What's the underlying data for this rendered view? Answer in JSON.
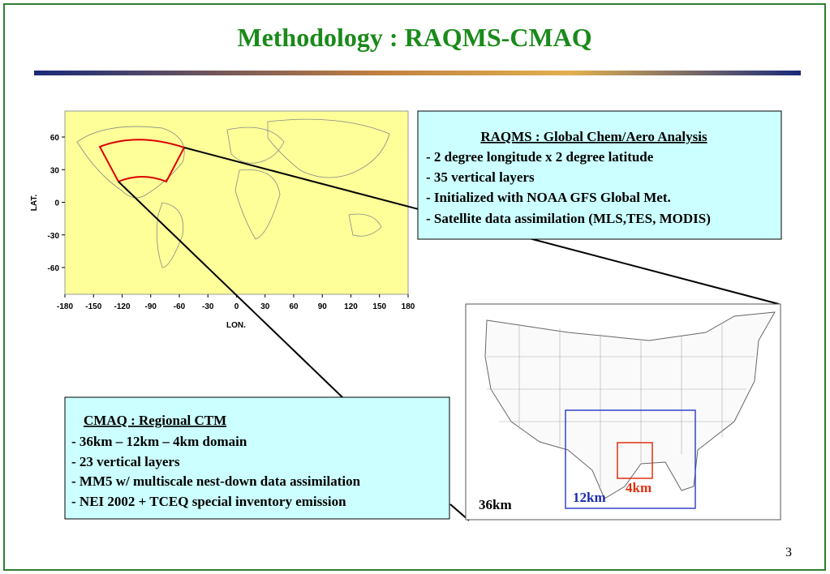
{
  "title": "Methodology : RAQMS-CMAQ",
  "world_map": {
    "y_label": "LAT.",
    "x_label": "LON.",
    "xticks": [
      -180,
      -150,
      -120,
      -90,
      -60,
      -30,
      0,
      30,
      60,
      90,
      120,
      150,
      180
    ],
    "yticks": [
      60,
      30,
      0,
      -30,
      -60
    ]
  },
  "raqms_box": {
    "heading": "RAQMS : Global Chem/Aero Analysis",
    "items": [
      "- 2 degree longitude x 2 degree latitude",
      "- 35 vertical layers",
      "- Initialized with NOAA GFS Global Met.",
      "- Satellite data assimilation (MLS,TES, MODIS)"
    ]
  },
  "cmaq_box": {
    "heading": "CMAQ : Regional CTM",
    "items": [
      "- 36km – 12km – 4km domain",
      "- 23 vertical layers",
      "- MM5 w/ multiscale nest-down data assimilation",
      "- NEI 2002 + TCEQ special inventory emission"
    ]
  },
  "us_map": {
    "domain_36": "36km",
    "domain_12": "12km",
    "domain_4": "4km"
  },
  "page_number": "3"
}
